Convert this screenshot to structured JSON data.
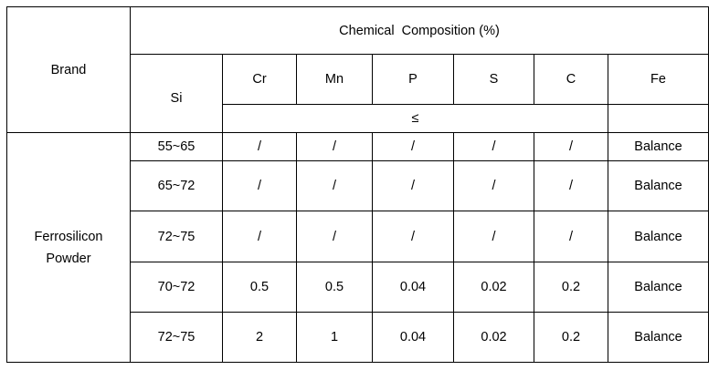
{
  "header": {
    "brand": "Brand",
    "group_title": "Chemical  Composition (%)",
    "columns": [
      "Si",
      "Cr",
      "Mn",
      "P",
      "S",
      "C",
      "Fe"
    ],
    "max_symbol": "≤"
  },
  "brand_name": [
    "Ferrosilicon",
    "Powder"
  ],
  "rows": [
    [
      "55~65",
      "/",
      "/",
      "/",
      "/",
      "/",
      "Balance"
    ],
    [
      "65~72",
      "/",
      "/",
      "/",
      "/",
      "/",
      "Balance"
    ],
    [
      "72~75",
      "/",
      "/",
      "/",
      "/",
      "/",
      "Balance"
    ],
    [
      "70~72",
      "0.5",
      "0.5",
      "0.04",
      "0.02",
      "0.2",
      "Balance"
    ],
    [
      "72~75",
      "2",
      "1",
      "0.04",
      "0.02",
      "0.2",
      "Balance"
    ]
  ]
}
